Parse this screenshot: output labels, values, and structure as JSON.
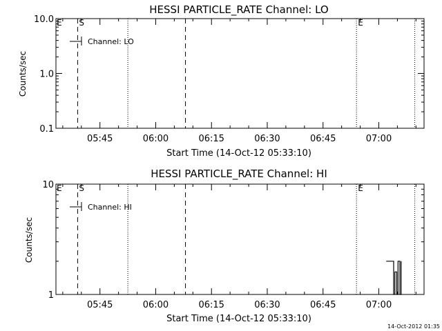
{
  "footer_timestamp": "14-Oct-2012 01:35",
  "chart_data": [
    {
      "type": "line",
      "title": "HESSI PARTICLE_RATE Channel: LO",
      "xlabel": "Start Time (14-Oct-12 05:33:10)",
      "ylabel": "Counts/sec",
      "y_scale": "log",
      "ylim": [
        0.1,
        10.0
      ],
      "y_ticks": [
        {
          "value": 0.1,
          "label": "0.1"
        },
        {
          "value": 1.0,
          "label": "1.0"
        },
        {
          "value": 10.0,
          "label": "10.0"
        }
      ],
      "xlim": [
        "05:33:10",
        "07:12:10"
      ],
      "x_ticks": [
        "05:45",
        "06:00",
        "06:15",
        "06:30",
        "06:45",
        "07:00"
      ],
      "legend": {
        "entries": [
          "Channel: LO"
        ],
        "placement": "top-left"
      },
      "markers": [
        {
          "time": "05:39:00",
          "style": "dashed",
          "label": "S"
        },
        {
          "time": "05:52:30",
          "style": "dotted",
          "label": ""
        },
        {
          "time": "06:08:00",
          "style": "dashed",
          "label": ""
        },
        {
          "time": "06:54:00",
          "style": "dotted",
          "label": "E"
        },
        {
          "time": "07:09:40",
          "style": "dotted",
          "label": ""
        }
      ],
      "edge_labels": [
        "E"
      ],
      "series": [
        {
          "name": "Channel: LO",
          "points": []
        }
      ]
    },
    {
      "type": "line",
      "title": "HESSI PARTICLE_RATE Channel: HI",
      "xlabel": "Start Time (14-Oct-12 05:33:10)",
      "ylabel": "Counts/sec",
      "y_scale": "log",
      "ylim": [
        1,
        10
      ],
      "y_ticks": [
        {
          "value": 1,
          "label": "1"
        },
        {
          "value": 10,
          "label": "10"
        }
      ],
      "xlim": [
        "05:33:10",
        "07:12:10"
      ],
      "x_ticks": [
        "05:45",
        "06:00",
        "06:15",
        "06:30",
        "06:45",
        "07:00"
      ],
      "legend": {
        "entries": [
          "Channel: HI"
        ],
        "placement": "top-left"
      },
      "markers": [
        {
          "time": "05:39:00",
          "style": "dashed",
          "label": "S"
        },
        {
          "time": "05:52:30",
          "style": "dotted",
          "label": ""
        },
        {
          "time": "06:08:00",
          "style": "dashed",
          "label": ""
        },
        {
          "time": "06:54:00",
          "style": "dotted",
          "label": "E"
        },
        {
          "time": "07:09:40",
          "style": "dotted",
          "label": ""
        }
      ],
      "edge_labels": [
        "E"
      ],
      "series": [
        {
          "name": "Channel: HI",
          "points": [
            {
              "time": "07:02:00",
              "value": 2
            },
            {
              "time": "07:04:00",
              "value": 2
            },
            {
              "time": "07:04:00",
              "value": 1
            },
            {
              "time": "07:04:20",
              "value": 1
            },
            {
              "time": "07:04:20",
              "value": 1.6
            },
            {
              "time": "07:04:50",
              "value": 1.6
            },
            {
              "time": "07:04:50",
              "value": 1
            },
            {
              "time": "07:05:10",
              "value": 1
            },
            {
              "time": "07:05:10",
              "value": 2
            },
            {
              "time": "07:05:40",
              "value": 2
            },
            {
              "time": "07:05:40",
              "value": 1
            },
            {
              "time": "07:06:00",
              "value": 1
            },
            {
              "time": "07:06:00",
              "value": 2
            }
          ]
        }
      ]
    }
  ]
}
